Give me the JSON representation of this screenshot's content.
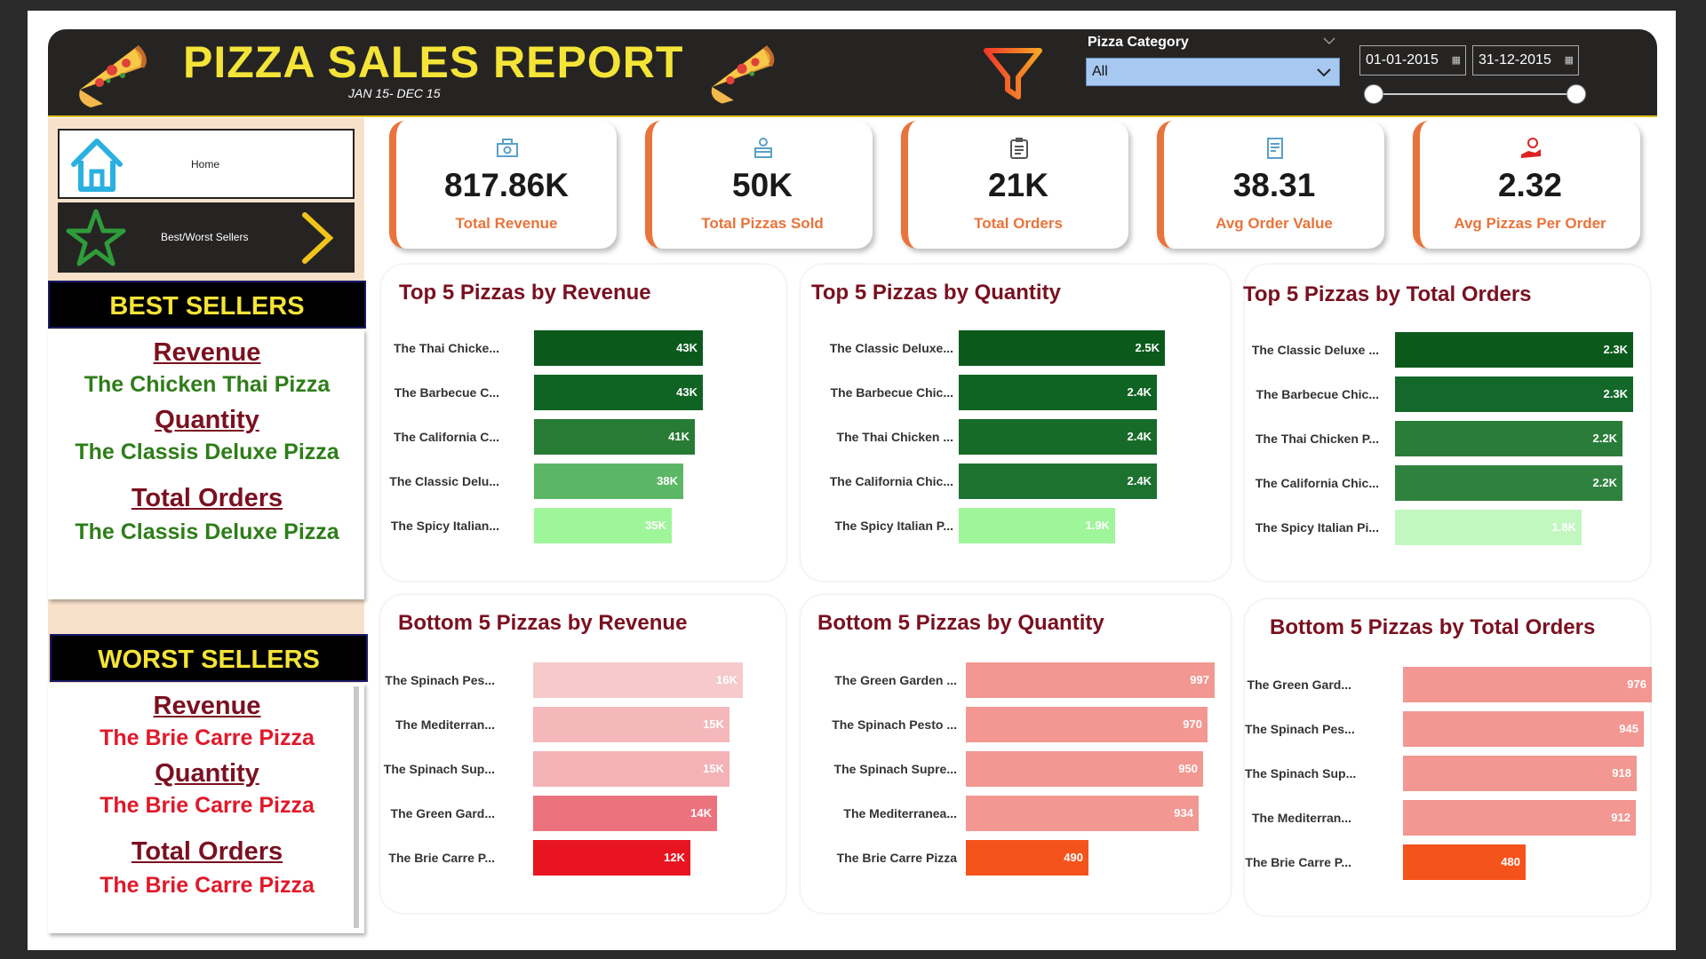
{
  "header": {
    "title": "PIZZA SALES REPORT",
    "subtitle": "JAN 15- DEC 15",
    "slicer_label": "Pizza Category",
    "slicer_value": "All",
    "date_start": "01-01-2015",
    "date_end": "31-12-2015"
  },
  "nav": {
    "home_label": "Home",
    "bestworst_label": "Best/Worst Sellers"
  },
  "best": {
    "heading": "BEST SELLERS",
    "revenue_title": "Revenue",
    "revenue_value": "The Chicken Thai Pizza",
    "quantity_title": "Quantity",
    "quantity_value": "The Classis Deluxe Pizza",
    "orders_title": "Total Orders",
    "orders_value": "The Classis Deluxe Pizza"
  },
  "worst": {
    "heading": "WORST SELLERS",
    "revenue_title": "Revenue",
    "revenue_value": "The Brie Carre Pizza",
    "quantity_title": "Quantity",
    "quantity_value": "The Brie Carre Pizza",
    "orders_title": "Total Orders",
    "orders_value": "The Brie Carre Pizza"
  },
  "kpis": [
    {
      "value": "817.86K",
      "label": "Total Revenue",
      "icon": "money-icon"
    },
    {
      "value": "50K",
      "label": "Total Pizzas Sold",
      "icon": "delivery-icon"
    },
    {
      "value": "21K",
      "label": "Total Orders",
      "icon": "clipboard-icon"
    },
    {
      "value": "38.31",
      "label": "Avg Order Value",
      "icon": "receipt-icon"
    },
    {
      "value": "2.32",
      "label": "Avg Pizzas Per Order",
      "icon": "hand-coin-icon"
    }
  ],
  "colors": {
    "accent": "#e8743b",
    "title_yellow": "#f4e437",
    "best_text": "#2e7d1a",
    "worst_text": "#e0192a",
    "card_title": "#7a1020"
  },
  "chart_data": [
    {
      "type": "bar",
      "title": "Top 5 Pizzas by Revenue",
      "categories": [
        "The Thai Chicke...",
        "The Barbecue C...",
        "The California C...",
        "The Classic Delu...",
        "The Spicy Italian..."
      ],
      "values": [
        43000,
        43000,
        41000,
        38000,
        35000
      ],
      "data_labels": [
        "43K",
        "43K",
        "41K",
        "38K",
        "35K"
      ],
      "colors": [
        "#0b5a1c",
        "#0f6323",
        "#287b34",
        "#5bb766",
        "#9ff59a"
      ]
    },
    {
      "type": "bar",
      "title": "Top 5 Pizzas by Quantity",
      "categories": [
        "The Classic Deluxe...",
        "The Barbecue Chic...",
        "The Thai Chicken ...",
        "The California Chic...",
        "The Spicy Italian P..."
      ],
      "values": [
        2500,
        2400,
        2400,
        2400,
        1900
      ],
      "data_labels": [
        "2.5K",
        "2.4K",
        "2.4K",
        "2.4K",
        "1.9K"
      ],
      "colors": [
        "#0b5a1c",
        "#0f6323",
        "#166b28",
        "#1d7230",
        "#9ff59a"
      ]
    },
    {
      "type": "bar",
      "title": "Top 5 Pizzas by Total Orders",
      "categories": [
        "The Classic Deluxe ...",
        "The Barbecue Chic...",
        "The Thai Chicken P...",
        "The California Chic...",
        "The Spicy Italian Pi..."
      ],
      "values": [
        2300,
        2300,
        2200,
        2200,
        1800
      ],
      "data_labels": [
        "2.3K",
        "2.3K",
        "2.2K",
        "2.2K",
        "1.8K"
      ],
      "colors": [
        "#0b5a1c",
        "#14692a",
        "#2a7d39",
        "#2f823d",
        "#c2f7c0"
      ]
    },
    {
      "type": "bar",
      "title": "Bottom 5 Pizzas by Revenue",
      "categories": [
        "The Spinach Pes...",
        "The Mediterran...",
        "The Spinach Sup...",
        "The Green Gard...",
        "The Brie Carre P..."
      ],
      "values": [
        16000,
        15000,
        15000,
        14000,
        12000
      ],
      "data_labels": [
        "16K",
        "15K",
        "15K",
        "14K",
        "12K"
      ],
      "colors": [
        "#f6c9cb",
        "#f4b8bb",
        "#f3b3b6",
        "#ec727e",
        "#e8141f"
      ]
    },
    {
      "type": "bar",
      "title": "Bottom 5 Pizzas by Quantity",
      "categories": [
        "The Green Garden ...",
        "The Spinach Pesto ...",
        "The Spinach Supre...",
        "The Mediterranea...",
        "The Brie Carre Pizza"
      ],
      "values": [
        997,
        970,
        950,
        934,
        490
      ],
      "data_labels": [
        "997",
        "970",
        "950",
        "934",
        "490"
      ],
      "colors": [
        "#f29791",
        "#f29791",
        "#f29791",
        "#f29791",
        "#f5531c"
      ]
    },
    {
      "type": "bar",
      "title": "Bottom 5 Pizzas by Total Orders",
      "categories": [
        "The Green Gard...",
        "The Spinach Pes...",
        "The Spinach Sup...",
        "The Mediterran...",
        "The Brie Carre P..."
      ],
      "values": [
        976,
        945,
        918,
        912,
        480
      ],
      "data_labels": [
        "976",
        "945",
        "918",
        "912",
        "480"
      ],
      "colors": [
        "#f29791",
        "#f29791",
        "#f29791",
        "#f29791",
        "#f5531c"
      ]
    }
  ]
}
